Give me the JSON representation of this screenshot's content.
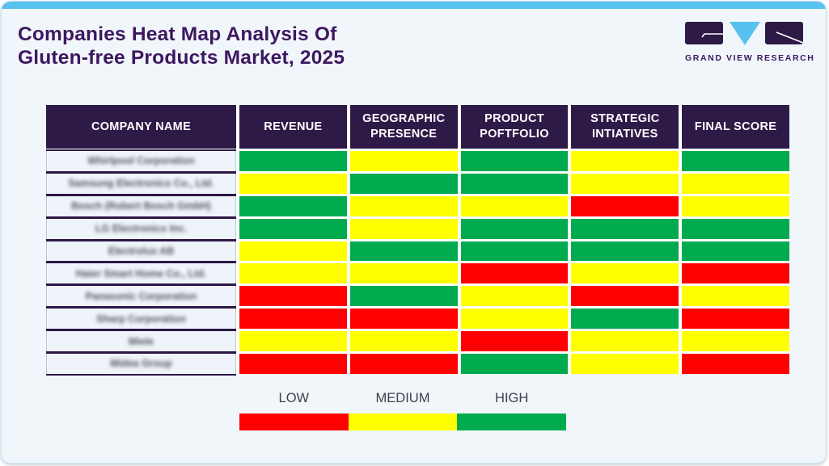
{
  "header": {
    "title_line1": "Companies Heat Map Analysis Of",
    "title_line2": "Gluten-free Products Market, 2025",
    "logo_text": "GRAND VIEW RESEARCH"
  },
  "chart_data": {
    "type": "heatmap",
    "title": "Companies Heat Map Analysis Of Gluten-free Products Market, 2025",
    "columns": [
      "COMPANY NAME",
      "REVENUE",
      "GEOGRAPHIC PRESENCE",
      "PRODUCT POFTFOLIO",
      "STRATEGIC INTIATIVES",
      "FINAL SCORE"
    ],
    "rating_scale": [
      "LOW",
      "MEDIUM",
      "HIGH"
    ],
    "rating_colors": {
      "LOW": "#ff0000",
      "MEDIUM": "#ffff00",
      "HIGH": "#00ab4f"
    },
    "rows": [
      {
        "company": "Whirlpool Corporation",
        "values": [
          "HIGH",
          "MEDIUM",
          "HIGH",
          "MEDIUM",
          "HIGH"
        ]
      },
      {
        "company": "Samsung Electronics Co., Ltd.",
        "values": [
          "MEDIUM",
          "HIGH",
          "HIGH",
          "MEDIUM",
          "MEDIUM"
        ]
      },
      {
        "company": "Bosch (Robert Bosch GmbH)",
        "values": [
          "HIGH",
          "MEDIUM",
          "MEDIUM",
          "LOW",
          "MEDIUM"
        ]
      },
      {
        "company": "LG Electronics Inc.",
        "values": [
          "HIGH",
          "MEDIUM",
          "HIGH",
          "HIGH",
          "HIGH"
        ]
      },
      {
        "company": "Electrolux AB",
        "values": [
          "MEDIUM",
          "HIGH",
          "HIGH",
          "HIGH",
          "HIGH"
        ]
      },
      {
        "company": "Haier Smart Home Co., Ltd.",
        "values": [
          "MEDIUM",
          "MEDIUM",
          "LOW",
          "MEDIUM",
          "LOW"
        ]
      },
      {
        "company": "Panasonic Corporation",
        "values": [
          "LOW",
          "HIGH",
          "MEDIUM",
          "LOW",
          "MEDIUM"
        ]
      },
      {
        "company": "Sharp Corporation",
        "values": [
          "LOW",
          "LOW",
          "MEDIUM",
          "HIGH",
          "LOW"
        ]
      },
      {
        "company": "Miele",
        "values": [
          "MEDIUM",
          "MEDIUM",
          "LOW",
          "MEDIUM",
          "MEDIUM"
        ]
      },
      {
        "company": "Midea Group",
        "values": [
          "LOW",
          "LOW",
          "HIGH",
          "MEDIUM",
          "LOW"
        ]
      }
    ],
    "legend_position": "bottom"
  },
  "legend": {
    "items": [
      {
        "label": "LOW",
        "color": "#ff0000"
      },
      {
        "label": "MEDIUM",
        "color": "#ffff00"
      },
      {
        "label": "HIGH",
        "color": "#00ab4f"
      }
    ]
  },
  "colors": {
    "accent_bar": "#56c2ed",
    "header_bg": "#2e1a47",
    "row_separator": "#2e1745",
    "title": "#3d1760",
    "card_bg": "#f0f6fa",
    "legend_text": "#3f3f49"
  }
}
